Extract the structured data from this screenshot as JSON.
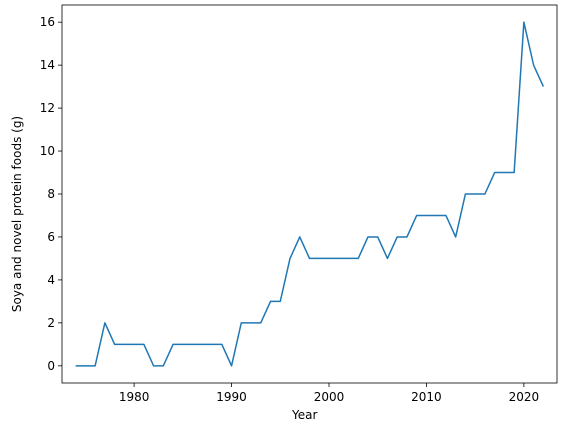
{
  "chart_data": {
    "type": "line",
    "title": "",
    "xlabel": "Year",
    "ylabel": "Soya and novel protein foods (g)",
    "xlim": [
      1972.6,
      2023.4
    ],
    "ylim": [
      -0.8,
      16.8
    ],
    "x_ticks": [
      1980,
      1990,
      2000,
      2010,
      2020
    ],
    "y_ticks": [
      0,
      2,
      4,
      6,
      8,
      10,
      12,
      14,
      16
    ],
    "grid": false,
    "line_color": "#1f77b4",
    "series": [
      {
        "x": [
          1974,
          1975,
          1976,
          1977,
          1978,
          1979,
          1980,
          1981,
          1982,
          1983,
          1984,
          1985,
          1986,
          1987,
          1988,
          1989,
          1990,
          1991,
          1992,
          1993,
          1994,
          1995,
          1996,
          1997,
          1998,
          1999,
          2000,
          2001,
          2002,
          2003,
          2004,
          2005,
          2006,
          2007,
          2008,
          2009,
          2010,
          2011,
          2012,
          2013,
          2014,
          2015,
          2016,
          2017,
          2018,
          2019,
          2020,
          2021,
          2022
        ],
        "values": [
          0,
          0,
          0,
          2,
          1,
          1,
          1,
          1,
          0,
          0,
          1,
          1,
          1,
          1,
          1,
          1,
          0,
          2,
          2,
          2,
          3,
          3,
          5,
          6,
          5,
          5,
          5,
          5,
          5,
          5,
          6,
          6,
          5,
          6,
          6,
          7,
          7,
          7,
          7,
          6,
          8,
          8,
          8,
          9,
          9,
          9,
          16,
          14,
          13
        ]
      }
    ]
  }
}
